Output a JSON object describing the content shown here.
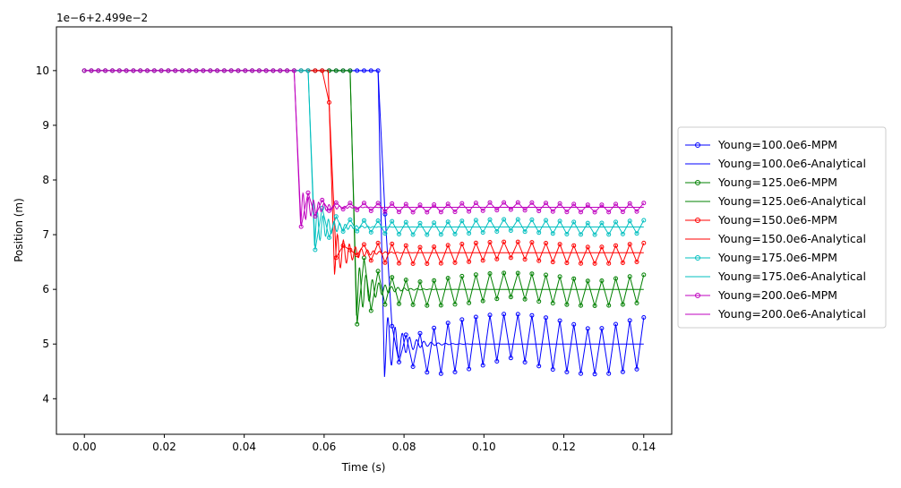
{
  "chart_data": {
    "type": "line",
    "title": "",
    "xlabel": "Time (s)",
    "ylabel": "Position (m)",
    "offset_label": "1e−6+2.499e−2",
    "xlim": [
      -0.007,
      0.147
    ],
    "ylim": [
      3.35,
      10.8
    ],
    "xticks": [
      0.0,
      0.02,
      0.04,
      0.06,
      0.08,
      0.1,
      0.12,
      0.14
    ],
    "xtick_labels": [
      "0.00",
      "0.02",
      "0.04",
      "0.06",
      "0.08",
      "0.10",
      "0.12",
      "0.14"
    ],
    "yticks": [
      4,
      5,
      6,
      7,
      8,
      9,
      10
    ],
    "ytick_labels": [
      "4",
      "5",
      "6",
      "7",
      "8",
      "9",
      "10"
    ],
    "grid": false,
    "legend_position": "right, outside plot",
    "series": [
      {
        "name": "Young=100.0e6-MPM",
        "kind": "mpm",
        "color": "#0000ff",
        "start": 10.0,
        "final": 5.0,
        "t_release": 0.0745,
        "amp": 0.55,
        "period": 0.0041
      },
      {
        "name": "Young=100.0e6-Analytical",
        "kind": "analytical",
        "color": "#0000ff",
        "start": 10.0,
        "final": 5.0,
        "t_release": 0.0735,
        "amp": 0.42,
        "period": 0.0018
      },
      {
        "name": "Young=125.0e6-MPM",
        "kind": "mpm",
        "color": "#008000",
        "start": 10.0,
        "final": 6.0,
        "t_release": 0.0665,
        "amp": 0.3,
        "period": 0.004
      },
      {
        "name": "Young=125.0e6-Analytical",
        "kind": "analytical",
        "color": "#008000",
        "start": 10.0,
        "final": 6.0,
        "t_release": 0.0665,
        "amp": 0.35,
        "period": 0.0016
      },
      {
        "name": "Young=150.0e6-MPM",
        "kind": "mpm",
        "color": "#ff0000",
        "start": 10.0,
        "final": 6.67,
        "t_release": 0.061,
        "amp": 0.2,
        "period": 0.004
      },
      {
        "name": "Young=150.0e6-Analytical",
        "kind": "analytical",
        "color": "#ff0000",
        "start": 10.0,
        "final": 6.67,
        "t_release": 0.061,
        "amp": 0.28,
        "period": 0.0015
      },
      {
        "name": "Young=175.0e6-MPM",
        "kind": "mpm",
        "color": "#00bfbf",
        "start": 10.0,
        "final": 7.14,
        "t_release": 0.056,
        "amp": 0.14,
        "period": 0.004
      },
      {
        "name": "Young=175.0e6-Analytical",
        "kind": "analytical",
        "color": "#00bfbf",
        "start": 10.0,
        "final": 7.14,
        "t_release": 0.056,
        "amp": 0.22,
        "period": 0.0014
      },
      {
        "name": "Young=200.0e6-MPM",
        "kind": "mpm",
        "color": "#bf00bf",
        "start": 10.0,
        "final": 7.5,
        "t_release": 0.0525,
        "amp": 0.09,
        "period": 0.004
      },
      {
        "name": "Young=200.0e6-Analytical",
        "kind": "analytical",
        "color": "#bf00bf",
        "start": 10.0,
        "final": 7.5,
        "t_release": 0.0525,
        "amp": 0.18,
        "period": 0.0013
      }
    ],
    "mpm_marker_spacing": 0.00175,
    "t_end": 0.14
  }
}
